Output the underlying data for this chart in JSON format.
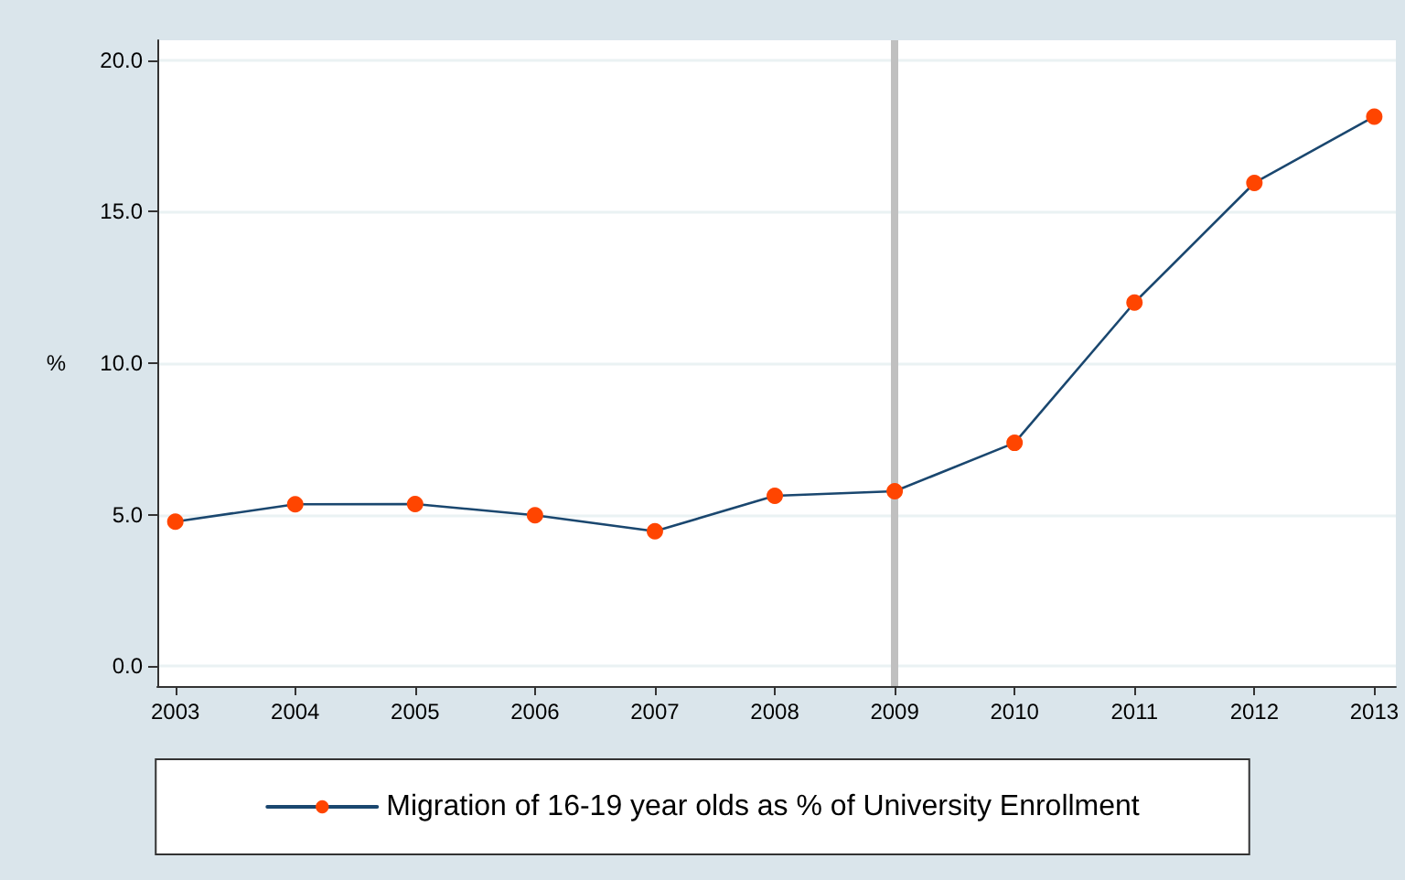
{
  "chart_data": {
    "type": "line",
    "ylabel": "%",
    "x": [
      2003,
      2004,
      2005,
      2006,
      2007,
      2008,
      2009,
      2010,
      2011,
      2012,
      2013
    ],
    "series": [
      {
        "name": "Migration of 16-19 year olds as % of University Enrollment",
        "color": "#1a476f",
        "colors": [
          "#ff4500",
          "#ff4500",
          "#ff4500",
          "#ff4500",
          "#ff4500",
          "#ff4500",
          "#ff4500",
          "#ff4500",
          "#ff4500",
          "#ff4500",
          "#ff4500"
        ],
        "values": [
          4.77,
          5.34,
          5.35,
          4.98,
          4.45,
          5.62,
          5.77,
          7.37,
          12.0,
          15.95,
          18.14
        ]
      }
    ],
    "xlim": [
      2002.85,
      2013.18
    ],
    "xticks": [
      2003,
      2004,
      2005,
      2006,
      2007,
      2008,
      2009,
      2010,
      2011,
      2012,
      2013
    ],
    "ylim": [
      -0.66,
      20.66
    ],
    "yticks": [
      {
        "value": 0,
        "label": "0.0"
      },
      {
        "value": 5,
        "label": "5.0"
      },
      {
        "value": 10,
        "label": "10.0"
      },
      {
        "value": 15,
        "label": "15.0"
      },
      {
        "value": 20,
        "label": "20.0"
      }
    ],
    "ref_lines": [
      {
        "axis": "x",
        "value": 2009,
        "color": "#c0c0c0"
      }
    ],
    "grid": "y",
    "legend": "bottom",
    "marker": "circle",
    "line_style": "solid"
  }
}
